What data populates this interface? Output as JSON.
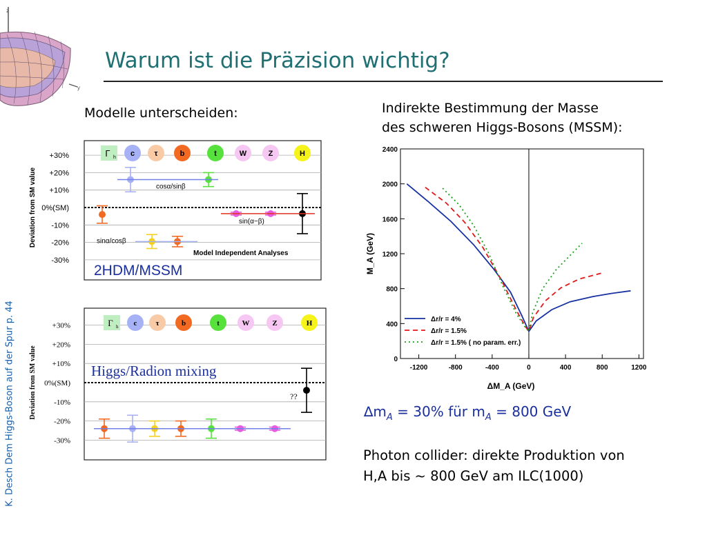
{
  "title": "Warum ist die Präzision wichtig?",
  "footer": "K. Desch Dem Higgs-Boson auf der Spur p. 44",
  "left_heading": "Modelle unterscheiden:",
  "right_heading_line1": "Indirekte Bestimmung der Masse",
  "right_heading_line2": "des schweren Higgs-Bosons (MSSM):",
  "dm_line": {
    "symbol": "∆m",
    "sub1": "A",
    "mid": " = 30% für m",
    "sub2": "A",
    "tail": " = 800 GeV"
  },
  "photon_line1": "Photon collider: direkte Produktion von",
  "photon_line2": "H,A bis ~ 800 GeV am ILC(1000)",
  "colors": {
    "title": "#1f6f73",
    "footer": "#1a5fa8",
    "accent_text": "#1a2f9c",
    "chart_blue": "#1530a0",
    "chart_red": "#e01818",
    "chart_green": "#18a018"
  },
  "panel1": {
    "ylabel": "Deviation from SM value",
    "yticks": [
      "+30%",
      "+20%",
      "+10%",
      "0%(SM)",
      "-10%",
      "-20%",
      "-30%"
    ],
    "circles": [
      {
        "label": "Γ",
        "sub": "h",
        "color": "#bfeec0",
        "shape": "square"
      },
      {
        "label": "c",
        "color": "#a7b1f5"
      },
      {
        "label": "τ",
        "color": "#f9caa6"
      },
      {
        "label": "b",
        "color": "#f26922"
      },
      {
        "label": "t",
        "color": "#56e13d"
      },
      {
        "label": "W",
        "color": "#f7c7f4"
      },
      {
        "label": "Z",
        "color": "#f7c7f4"
      },
      {
        "label": "H",
        "color": "#f6f31a"
      }
    ],
    "annot_cos": "cosα/sinβ",
    "annot_sinab": "sin(α−β)",
    "annot_sinacos": "sinα/cosβ",
    "model_text": "Model Independent Analyses",
    "overlay": "2HDM/MSSM",
    "points": [
      {
        "name": "c",
        "value": 16,
        "err": 7,
        "color": "#a7b1f5"
      },
      {
        "name": "t",
        "value": 16,
        "err": 4,
        "color": "#56e13d"
      },
      {
        "name": "b-left",
        "value": -4,
        "err": 5,
        "color": "#f26922"
      },
      {
        "name": "tau",
        "value": -19.5,
        "err": 4,
        "color": "#f5d020"
      },
      {
        "name": "b",
        "value": -19.5,
        "err": 3,
        "color": "#f26922"
      },
      {
        "name": "W",
        "value": -3.5,
        "err": 0.8,
        "color": "#e75be0"
      },
      {
        "name": "Z",
        "value": -3.5,
        "err": 0.8,
        "color": "#e75be0"
      },
      {
        "name": "H",
        "value": -3.5,
        "err": 11.5,
        "color": "#000000"
      }
    ]
  },
  "panel2": {
    "ylabel": "Deviation from SM value",
    "yticks": [
      "+30%",
      "+20%",
      "+10%",
      "0%(SM)",
      "-10%",
      "-20%",
      "-30%"
    ],
    "circles": [
      {
        "label": "Γ",
        "sub": "h",
        "color": "#bfeec0",
        "shape": "square"
      },
      {
        "label": "c",
        "color": "#a7b1f5"
      },
      {
        "label": "τ",
        "color": "#f9caa6"
      },
      {
        "label": "b",
        "color": "#f26922"
      },
      {
        "label": "t",
        "color": "#56e13d"
      },
      {
        "label": "W",
        "color": "#f7c7f4"
      },
      {
        "label": "Z",
        "color": "#f7c7f4"
      },
      {
        "label": "H",
        "color": "#f6f31a"
      }
    ],
    "overlay": "Higgs/Radion mixing",
    "unknown": "??",
    "points": [
      {
        "name": "b",
        "value": -24,
        "err": 5,
        "color": "#f26922"
      },
      {
        "name": "c",
        "value": -24,
        "err": 7,
        "color": "#a7b1f5"
      },
      {
        "name": "tau",
        "value": -24,
        "err": 4,
        "color": "#f5d020"
      },
      {
        "name": "b2",
        "value": -24,
        "err": 4,
        "color": "#f26922"
      },
      {
        "name": "t",
        "value": -24,
        "err": 5,
        "color": "#56e13d"
      },
      {
        "name": "W",
        "value": -24,
        "err": 0.8,
        "color": "#e75be0"
      },
      {
        "name": "Z",
        "value": -24,
        "err": 0.8,
        "color": "#e75be0"
      },
      {
        "name": "H",
        "value": -4,
        "err": 11.5,
        "color": "#000000"
      }
    ]
  },
  "chart_data": {
    "type": "line",
    "xlabel": "ΔM_A (GeV)",
    "ylabel": "M_A (GeV)",
    "xlim": [
      -1400,
      1250
    ],
    "ylim": [
      0,
      2400
    ],
    "xticks": [
      "-1200",
      "-800",
      "-400",
      "0",
      "400",
      "800",
      "1200"
    ],
    "yticks": [
      "0",
      "400",
      "800",
      "1200",
      "1600",
      "2000",
      "2400"
    ],
    "legend_position": "bottom-left",
    "series": [
      {
        "name": "Δr/r = 4%",
        "style": "solid",
        "color": "#1530a0",
        "x": [
          -1330,
          -1100,
          -850,
          -600,
          -380,
          -200,
          -80,
          0,
          80,
          250,
          450,
          700,
          900,
          1110
        ],
        "y": [
          2000,
          1800,
          1570,
          1300,
          1020,
          760,
          500,
          310,
          430,
          560,
          650,
          710,
          745,
          775
        ]
      },
      {
        "name": "Δr/r = 1.5%",
        "style": "dashed",
        "color": "#e01818",
        "x": [
          -1130,
          -900,
          -700,
          -500,
          -300,
          -140,
          -40,
          0,
          50,
          180,
          350,
          550,
          800
        ],
        "y": [
          1960,
          1780,
          1560,
          1270,
          900,
          560,
          370,
          310,
          470,
          660,
          810,
          910,
          980
        ]
      },
      {
        "name": "Δr/r = 1.5% ( no param. err.)",
        "style": "dotted",
        "color": "#18a018",
        "x": [
          -940,
          -760,
          -600,
          -440,
          -280,
          -140,
          -40,
          0,
          40,
          150,
          300,
          450,
          580
        ],
        "y": [
          1950,
          1760,
          1520,
          1210,
          820,
          520,
          360,
          310,
          520,
          800,
          1020,
          1180,
          1320
        ]
      }
    ]
  }
}
